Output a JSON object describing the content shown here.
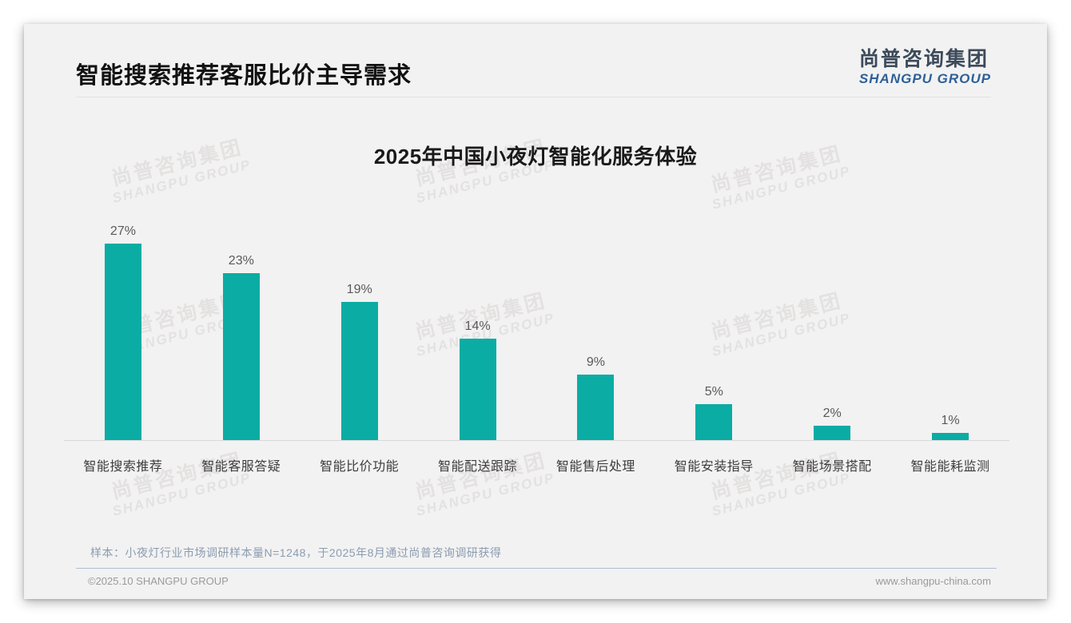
{
  "header": {
    "title": "智能搜索推荐客服比价主导需求",
    "logo_cn": "尚普咨询集团",
    "logo_en": "SHANGPU GROUP"
  },
  "watermark": {
    "cn": "尚普咨询集团",
    "en": "SHANGPU GROUP"
  },
  "chart_data": {
    "type": "bar",
    "title": "2025年中国小夜灯智能化服务体验",
    "categories": [
      "智能搜索推荐",
      "智能客服答疑",
      "智能比价功能",
      "智能配送跟踪",
      "智能售后处理",
      "智能安装指导",
      "智能场景搭配",
      "智能能耗监测"
    ],
    "values": [
      27,
      23,
      19,
      14,
      9,
      5,
      2,
      1
    ],
    "data_labels": [
      "27%",
      "23%",
      "19%",
      "14%",
      "9%",
      "5%",
      "2%",
      "1%"
    ],
    "unit": "%",
    "ylim": [
      0,
      30
    ],
    "grid": false,
    "legend": false,
    "bar_color": "#0baca4"
  },
  "footnote": "样本：小夜灯行业市场调研样本量N=1248，于2025年8月通过尚普咨询调研获得",
  "footer": {
    "left": "©2025.10 SHANGPU GROUP",
    "right": "www.shangpu-china.com"
  },
  "colors": {
    "bar": "#0baca4",
    "logo_blue": "#2d6099",
    "slide_bg": "#f2f2f2",
    "note_text": "#8b9cb1"
  }
}
